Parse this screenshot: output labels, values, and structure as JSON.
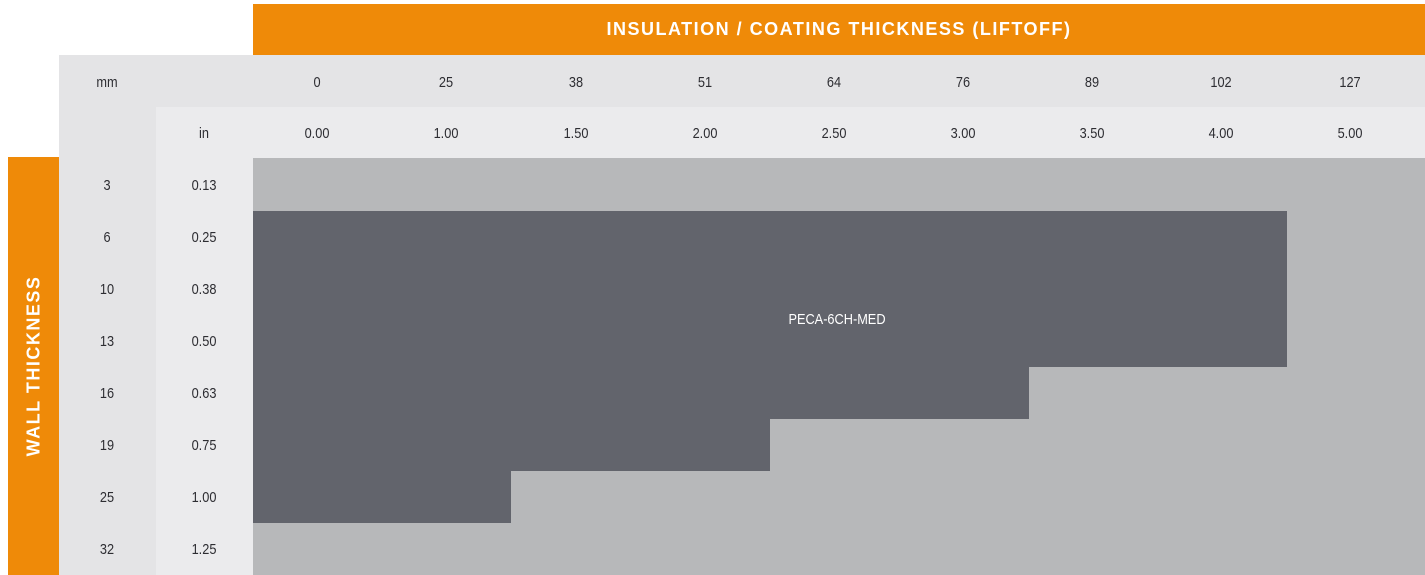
{
  "header": {
    "title": "INSULATION / COATING THICKNESS (LIFTOFF)"
  },
  "side": {
    "title": "WALL THICKNESS"
  },
  "units": {
    "mm": "mm",
    "in": "in"
  },
  "columns_mm": [
    "0",
    "25",
    "38",
    "51",
    "64",
    "76",
    "89",
    "102",
    "127"
  ],
  "columns_in": [
    "0.00",
    "1.00",
    "1.50",
    "2.00",
    "2.50",
    "3.00",
    "3.50",
    "4.00",
    "5.00"
  ],
  "rows_mm": [
    "3",
    "6",
    "10",
    "13",
    "16",
    "19",
    "25",
    "32"
  ],
  "rows_in": [
    "0.13",
    "0.25",
    "0.38",
    "0.50",
    "0.63",
    "0.75",
    "1.00",
    "1.25"
  ],
  "zone": {
    "label": "PECA-6CH-MED",
    "color": "#62646c",
    "max_insulation_in_by_wall_thickness": {
      "0.25": "4.00",
      "0.38": "4.00",
      "0.50": "4.00",
      "0.63": "3.00",
      "0.75": "2.00",
      "1.00": "1.00"
    }
  },
  "colors": {
    "accent": "#ef8a08",
    "zone_fill": "#62646c",
    "background_grid": "#b7b8ba"
  }
}
